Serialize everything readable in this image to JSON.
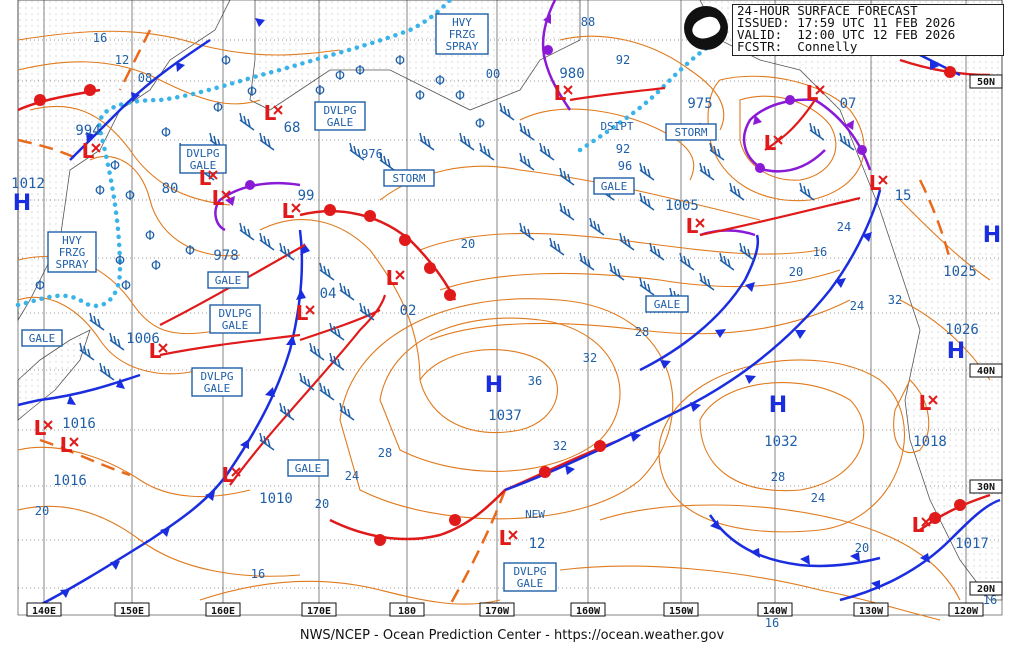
{
  "header": {
    "line1": "24-HOUR SURFACE FORECAST",
    "line2": "ISSUED: 17:59 UTC 11 FEB 2026",
    "line3": "VALID:  12:00 UTC 12 FEB 2026",
    "line4": "FCSTR:  Connelly"
  },
  "footer": "NWS/NCEP - Ocean Prediction Center - https://ocean.weather.gov",
  "lon_labels": [
    "140E",
    "150E",
    "160E",
    "170E",
    "180",
    "170W",
    "160W",
    "150W",
    "140W",
    "130W",
    "120W"
  ],
  "lat_labels": [
    "50N",
    "40N",
    "30N",
    "20N"
  ],
  "pressure_centers": [
    {
      "type": "L",
      "value": "994"
    },
    {
      "type": "L",
      "value": "980"
    },
    {
      "type": "L",
      "value": "975"
    },
    {
      "type": "L",
      "value": "07"
    },
    {
      "type": "L",
      "value": "68"
    },
    {
      "type": "L",
      "value": "80"
    },
    {
      "type": "L",
      "value": "99"
    },
    {
      "type": "L",
      "value": "978"
    },
    {
      "type": "L",
      "value": "04"
    },
    {
      "type": "L",
      "value": "02"
    },
    {
      "type": "L",
      "value": "1005"
    },
    {
      "type": "L",
      "value": "1006"
    },
    {
      "type": "L",
      "value": "1016"
    },
    {
      "type": "L",
      "value": "1016"
    },
    {
      "type": "L",
      "value": "1010"
    },
    {
      "type": "L",
      "value": "12"
    },
    {
      "type": "L",
      "value": "1018"
    },
    {
      "type": "L",
      "value": "1017"
    },
    {
      "type": "L",
      "value": "15"
    },
    {
      "type": "H",
      "value": "1012"
    },
    {
      "type": "H",
      "value": "1037"
    },
    {
      "type": "H",
      "value": "1032"
    },
    {
      "type": "H",
      "value": "1025"
    },
    {
      "type": "H",
      "value": "1026"
    }
  ],
  "isobar_labels": [
    "16",
    "12",
    "08",
    "00",
    "88",
    "92",
    "92",
    "96",
    "976",
    "20",
    "16",
    "20",
    "24",
    "28",
    "32",
    "36",
    "32",
    "28",
    "24",
    "20",
    "16",
    "20",
    "24",
    "28",
    "32",
    "24",
    "20",
    "16",
    "16"
  ],
  "warnings": [
    {
      "lines": [
        "HVY",
        "FRZG",
        "SPRAY"
      ]
    },
    {
      "lines": [
        "HVY",
        "FRZG",
        "SPRAY"
      ]
    },
    {
      "lines": [
        "DVLPG",
        "GALE"
      ]
    },
    {
      "lines": [
        "DVLPG",
        "GALE"
      ]
    },
    {
      "lines": [
        "STORM"
      ]
    },
    {
      "lines": [
        "STORM"
      ]
    },
    {
      "lines": [
        "GALE"
      ]
    },
    {
      "lines": [
        "GALE"
      ]
    },
    {
      "lines": [
        "GALE"
      ]
    },
    {
      "lines": [
        "DVLPG",
        "GALE"
      ]
    },
    {
      "lines": [
        "GALE"
      ]
    },
    {
      "lines": [
        "DVLPG",
        "GALE"
      ]
    },
    {
      "lines": [
        "GALE"
      ]
    },
    {
      "lines": [
        "DVLPG",
        "GALE"
      ]
    }
  ],
  "notes": [
    "DSIPT",
    "NEW"
  ],
  "colors": {
    "isobar": "#e07a1e",
    "text": "#1f5fa8",
    "cold_front": "#1a2ee0",
    "warm_front": "#e01a1a",
    "occluded": "#8a1ad6",
    "ice": "#3ab4e8",
    "grid": "#444444"
  }
}
